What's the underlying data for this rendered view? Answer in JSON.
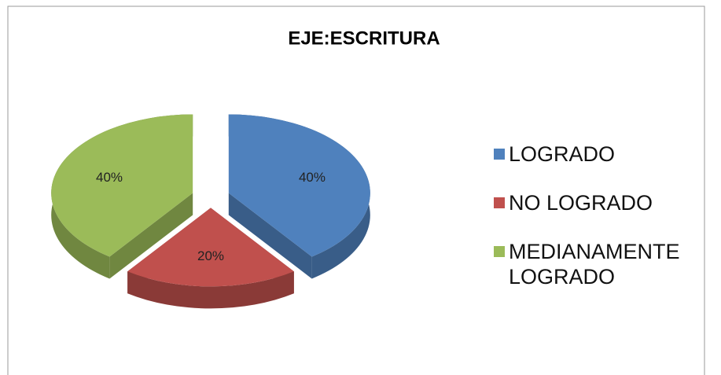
{
  "chart_data": {
    "type": "pie",
    "title": "EJE:ESCRITURA",
    "categories": [
      "LOGRADO",
      "NO LOGRADO",
      "MEDIANAMENTE LOGRADO"
    ],
    "values": [
      40,
      20,
      40
    ],
    "value_labels": [
      "40%",
      "20%",
      "40%"
    ],
    "colors": [
      "#4F81BD",
      "#C0504D",
      "#9BBB59"
    ],
    "legend": "right"
  }
}
